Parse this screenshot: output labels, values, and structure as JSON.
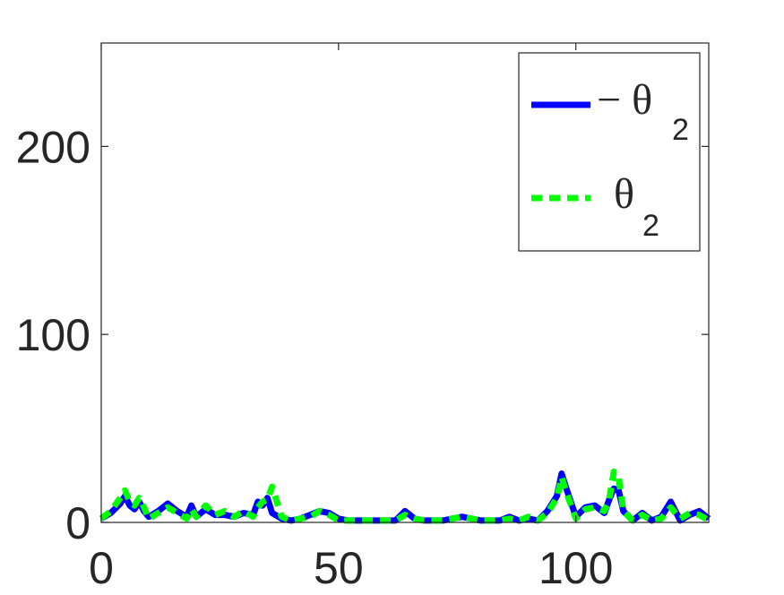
{
  "chart_data": {
    "type": "line",
    "xlim": [
      0,
      128
    ],
    "ylim": [
      0,
      255
    ],
    "xticks": [
      0,
      50,
      100
    ],
    "yticks": [
      0,
      100,
      200
    ],
    "grid": false,
    "legend_position": "top-right",
    "series": [
      {
        "name": "− θ₂",
        "name_main": "− θ",
        "name_sub": "2",
        "color": "#0000ff",
        "style": "solid",
        "x": [
          0,
          2,
          4,
          5,
          6,
          7,
          8,
          9,
          10,
          12,
          14,
          16,
          18,
          19,
          20,
          22,
          24,
          26,
          28,
          30,
          32,
          33,
          34,
          35,
          36,
          38,
          40,
          42,
          44,
          46,
          48,
          50,
          52,
          54,
          56,
          58,
          60,
          62,
          64,
          66,
          68,
          70,
          72,
          74,
          76,
          78,
          80,
          82,
          84,
          86,
          88,
          90,
          92,
          94,
          96,
          97,
          98,
          100,
          102,
          104,
          106,
          107,
          108,
          109,
          110,
          112,
          114,
          116,
          118,
          120,
          122,
          124,
          126,
          128
        ],
        "y": [
          2,
          5,
          10,
          14,
          9,
          7,
          11,
          6,
          3,
          6,
          10,
          6,
          3,
          9,
          3,
          7,
          4,
          4,
          3,
          5,
          4,
          11,
          9,
          13,
          5,
          2,
          1,
          2,
          4,
          6,
          5,
          2,
          1,
          1,
          1,
          1,
          1,
          1,
          6,
          2,
          1,
          1,
          1,
          2,
          3,
          2,
          1,
          1,
          1,
          3,
          1,
          2,
          1,
          6,
          14,
          26,
          18,
          3,
          8,
          9,
          5,
          12,
          18,
          17,
          6,
          1,
          5,
          1,
          3,
          11,
          1,
          4,
          6,
          2
        ]
      },
      {
        "name": "θ₂",
        "name_main": "θ",
        "name_sub": "2",
        "color": "#00ff00",
        "style": "dashed",
        "x": [
          0,
          2,
          4,
          5,
          6,
          7,
          8,
          9,
          10,
          12,
          14,
          16,
          18,
          19,
          20,
          22,
          24,
          26,
          28,
          30,
          32,
          33,
          34,
          35,
          36,
          38,
          40,
          42,
          44,
          46,
          48,
          50,
          52,
          54,
          56,
          58,
          60,
          62,
          64,
          66,
          68,
          70,
          72,
          74,
          76,
          78,
          80,
          82,
          84,
          86,
          88,
          90,
          92,
          94,
          96,
          97,
          98,
          100,
          102,
          104,
          106,
          107,
          108,
          109,
          110,
          112,
          114,
          116,
          118,
          120,
          122,
          124,
          126,
          128
        ],
        "y": [
          2,
          6,
          13,
          17,
          11,
          9,
          13,
          8,
          2,
          5,
          8,
          5,
          2,
          7,
          3,
          9,
          4,
          6,
          3,
          6,
          3,
          8,
          11,
          12,
          19,
          3,
          1,
          2,
          3,
          6,
          4,
          1,
          1,
          1,
          1,
          1,
          1,
          1,
          4,
          2,
          1,
          1,
          1,
          2,
          3,
          2,
          1,
          1,
          1,
          2,
          1,
          3,
          1,
          5,
          13,
          24,
          16,
          2,
          7,
          8,
          6,
          12,
          27,
          24,
          6,
          1,
          4,
          1,
          2,
          8,
          2,
          5,
          4,
          1
        ]
      }
    ]
  }
}
